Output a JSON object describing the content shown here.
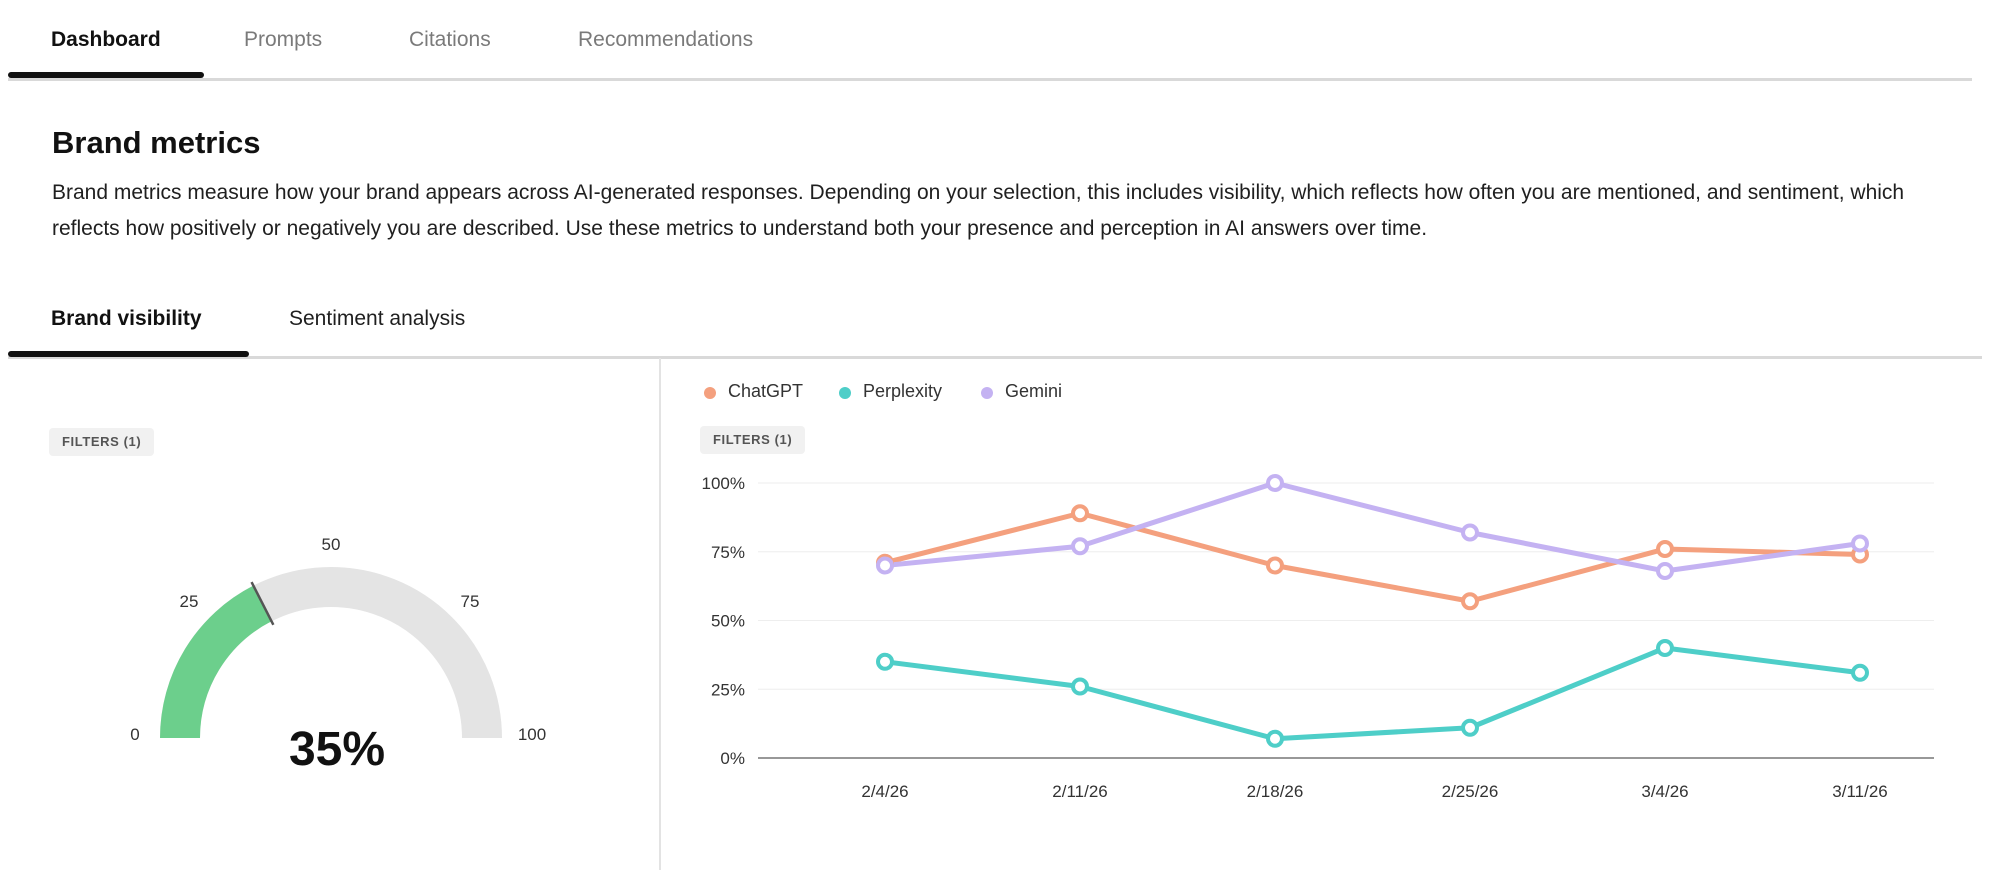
{
  "top_tabs": [
    {
      "label": "Dashboard",
      "active": true
    },
    {
      "label": "Prompts",
      "active": false
    },
    {
      "label": "Citations",
      "active": false
    },
    {
      "label": "Recommendations",
      "active": false
    }
  ],
  "section": {
    "title": "Brand metrics",
    "description": "Brand metrics measure how your brand appears across AI-generated responses. Depending on your selection, this includes visibility, which reflects how often you are mentioned, and sentiment, which reflects how positively or negatively you are described. Use these metrics to understand both your presence and perception in AI answers over time."
  },
  "sub_tabs": [
    {
      "label": "Brand visibility",
      "active": true
    },
    {
      "label": "Sentiment analysis",
      "active": false
    }
  ],
  "gauge": {
    "filter_label": "FILTERS (1)",
    "value": 35,
    "value_label": "35%",
    "min": 0,
    "max": 100,
    "ticks": [
      "0",
      "25",
      "50",
      "75",
      "100"
    ],
    "fill_color": "#6ccf8c",
    "track_color": "#e4e4e4"
  },
  "line_chart": {
    "filter_label": "FILTERS (1)"
  },
  "chart_data": {
    "type": "line",
    "x": [
      "2/4/26",
      "2/11/26",
      "2/18/26",
      "2/25/26",
      "3/4/26",
      "3/11/26"
    ],
    "series": [
      {
        "name": "ChatGPT",
        "color": "#f4a07e",
        "values": [
          71,
          89,
          70,
          57,
          76,
          74
        ]
      },
      {
        "name": "Perplexity",
        "color": "#4ecec8",
        "values": [
          35,
          26,
          7,
          11,
          40,
          31
        ]
      },
      {
        "name": "Gemini",
        "color": "#c4b2f2",
        "values": [
          70,
          77,
          100,
          82,
          68,
          78
        ]
      }
    ],
    "y_ticks": [
      "0%",
      "25%",
      "50%",
      "75%",
      "100%"
    ],
    "ylim": [
      0,
      100
    ],
    "legend_position": "top-left",
    "grid": true
  }
}
